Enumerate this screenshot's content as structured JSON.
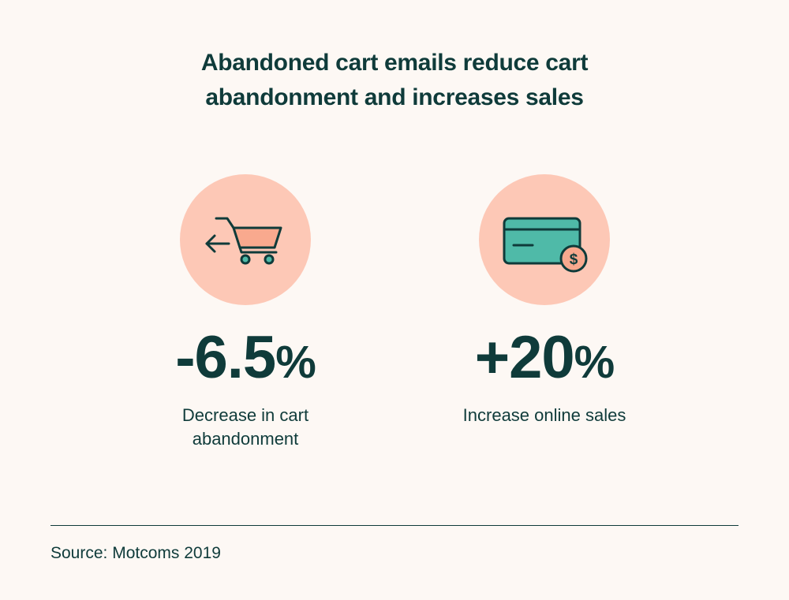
{
  "title": {
    "line1": "Abandoned cart emails reduce cart",
    "line2": "abandonment and increases sales"
  },
  "stats": [
    {
      "icon": "shopping-cart-icon",
      "value": "-6.5",
      "unit": "%",
      "caption_line1": "Decrease in cart",
      "caption_line2": "abandonment"
    },
    {
      "icon": "credit-card-dollar-icon",
      "value": "+20",
      "unit": "%",
      "caption_line1": "Increase online sales",
      "caption_line2": ""
    }
  ],
  "source": "Source: Motcoms 2019",
  "colors": {
    "background": "#fdf8f4",
    "text": "#0f3b3a",
    "circle": "#fdc8b6",
    "cart": "#f9a98e",
    "card": "#4fbaa8",
    "coin": "#f9a98e"
  }
}
